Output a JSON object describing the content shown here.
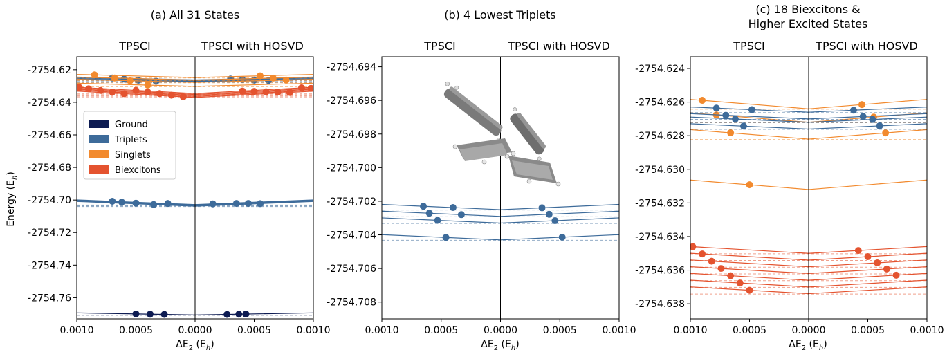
{
  "figure": {
    "ylabel": "Energy (E",
    "ylabel_sub": "h",
    "ylabel_close": ")",
    "xlabel": "ΔE",
    "xlabel_sub2": "2",
    "xlabel_rest": " (E",
    "xlabel_subh": "h",
    "xlabel_close": ")",
    "left_label": "TPSCI",
    "right_label": "TPSCI with HOSVD"
  },
  "legend": {
    "placement": "center-left",
    "entries": [
      {
        "label": "Ground",
        "color": "#0d1b52"
      },
      {
        "label": "Triplets",
        "color": "#3d6b9a"
      },
      {
        "label": "Singlets",
        "color": "#f28a2e"
      },
      {
        "label": "Biexcitons",
        "color": "#e4532f"
      }
    ]
  },
  "chart_data": [
    {
      "type": "scatter",
      "title": "(a) All 31 States",
      "xlim": [
        -0.001,
        0.001
      ],
      "ylim": [
        -2754.773,
        -2754.612
      ],
      "xticks": [
        "0.0010",
        "0.0005",
        "0.0000",
        "0.0005",
        "0.0010"
      ],
      "yticks": [
        -2754.62,
        -2754.64,
        -2754.66,
        -2754.68,
        -2754.7,
        -2754.72,
        -2754.74,
        -2754.76
      ],
      "ytick_labels": [
        "-2754.62",
        "-2754.64",
        "-2754.66",
        "-2754.68",
        "-2754.70",
        "-2754.72",
        "-2754.74",
        "-2754.76"
      ],
      "series": [
        {
          "group": "Ground",
          "color": "#0d1b52",
          "e0": [
            -2754.7706
          ],
          "slope": 0.4,
          "x_left": [
            0.0005,
            0.00038,
            0.00026
          ],
          "x_right": [
            0.00027,
            0.00037,
            0.00043
          ]
        },
        {
          "group": "Triplets",
          "color": "#3d6b9a",
          "e0": [
            -2754.7028,
            -2754.7031,
            -2754.7034,
            -2754.7038
          ],
          "slope": 0.9,
          "x_left": [
            0.0007,
            0.00062,
            0.0005,
            0.00035,
            0.00023
          ],
          "x_right": [
            0.00015,
            0.00035,
            0.00045,
            0.00055
          ]
        },
        {
          "group": "Triplets",
          "color": "#3d6b9a",
          "e0": [
            -2754.6262,
            -2754.6267,
            -2754.6272,
            -2754.6276
          ],
          "slope": 0.5,
          "x_left": [
            0.0007,
            0.0006,
            0.00048,
            0.00033
          ],
          "x_right": [
            0.0003,
            0.0004,
            0.0005,
            0.00062
          ]
        },
        {
          "group": "Singlets",
          "color": "#f28a2e",
          "e0": [
            -2754.6248,
            -2754.6264,
            -2754.6278,
            -2754.6302
          ],
          "slope": 0.6,
          "x_left": [
            0.00085,
            0.00068,
            0.00055,
            0.0004
          ],
          "x_right": [
            0.00055,
            0.00066,
            0.00077
          ]
        },
        {
          "group": "Biexcitons",
          "color": "#e4532f",
          "e0": [
            -2754.6346,
            -2754.6352,
            -2754.6358,
            -2754.6364,
            -2754.637
          ],
          "slope": 1.2,
          "x_left": [
            0.00098,
            0.0009,
            0.0008,
            0.0007,
            0.0006,
            0.0005,
            0.0004,
            0.0003,
            0.0002,
            0.0001
          ],
          "x_right": [
            0.0004,
            0.0005,
            0.0006,
            0.0007,
            0.0008,
            0.0009,
            0.00098
          ]
        }
      ]
    },
    {
      "type": "scatter",
      "title": "(b) 4 Lowest Triplets",
      "xlim": [
        -0.001,
        0.001
      ],
      "ylim": [
        -2754.709,
        -2754.6934
      ],
      "xticks": [
        "0.0010",
        "0.0005",
        "0.0000",
        "0.0005",
        "0.0010"
      ],
      "yticks": [
        -2754.694,
        -2754.696,
        -2754.698,
        -2754.7,
        -2754.702,
        -2754.704,
        -2754.706,
        -2754.708
      ],
      "ytick_labels": [
        "-2754.694",
        "-2754.696",
        "-2754.698",
        "-2754.700",
        "-2754.702",
        "-2754.704",
        "-2754.706",
        "-2754.708"
      ],
      "series": [
        {
          "group": "Triplets",
          "color": "#3d6b9a",
          "e0": [
            -2754.7025,
            -2754.7029,
            -2754.7033,
            -2754.7043
          ],
          "slope": 1.0,
          "x_left": [
            0.00065,
            0.0006,
            0.00053,
            0.00046,
            0.0004,
            0.00033
          ],
          "x_right": [
            0.00035,
            0.00041,
            0.00046,
            0.00052
          ]
        }
      ]
    },
    {
      "type": "scatter",
      "title": "(c) 18 Biexcitons &",
      "title2": "Higher Excited States",
      "xlim": [
        -0.001,
        0.001
      ],
      "ylim": [
        -2754.6389,
        -2754.6233
      ],
      "xticks": [
        "0.0010",
        "0.0005",
        "0.0000",
        "0.0005",
        "0.0010"
      ],
      "yticks": [
        -2754.624,
        -2754.626,
        -2754.628,
        -2754.63,
        -2754.632,
        -2754.634,
        -2754.636,
        -2754.638
      ],
      "ytick_labels": [
        "-2754.624",
        "-2754.626",
        "-2754.628",
        "-2754.630",
        "-2754.632",
        "-2754.634",
        "-2754.636",
        "-2754.638"
      ],
      "series": [
        {
          "group": "Singlets",
          "color": "#f28a2e",
          "e0": [
            -2754.6264,
            -2754.6272,
            -2754.6282,
            -2754.6312
          ],
          "slope": 1.8,
          "x_left": [
            0.0009,
            0.00078,
            0.00066,
            0.0005
          ],
          "x_right": [
            0.00045,
            0.00055,
            0.00065
          ]
        },
        {
          "group": "Triplets",
          "color": "#3d6b9a",
          "e0": [
            -2754.6266,
            -2754.627,
            -2754.6272,
            -2754.6276
          ],
          "slope": 1.0,
          "x_left": [
            0.00078,
            0.0007,
            0.00062,
            0.00055,
            0.00048
          ],
          "x_right": [
            0.00038,
            0.00046,
            0.00054,
            0.0006
          ]
        },
        {
          "group": "Biexcitons",
          "color": "#e4532f",
          "e0": [
            -2754.635,
            -2754.6354,
            -2754.6358,
            -2754.6362,
            -2754.6366,
            -2754.637,
            -2754.6374
          ],
          "slope": 1.3,
          "x_left": [
            0.00098,
            0.0009,
            0.00082,
            0.00074,
            0.00066,
            0.00058,
            0.0005
          ],
          "x_right": [
            0.00042,
            0.0005,
            0.00058,
            0.00066,
            0.00074
          ]
        }
      ]
    }
  ]
}
